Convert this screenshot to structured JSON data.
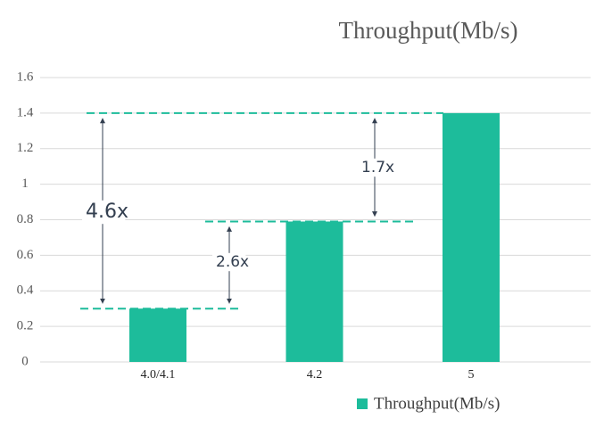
{
  "chart_data": {
    "type": "bar",
    "title": "Throughput(Mb/s)",
    "categories": [
      "4.0/4.1",
      "4.2",
      "5"
    ],
    "series": [
      {
        "name": "Throughput(Mb/s)",
        "color": "#1dbc9b",
        "values": [
          0.3,
          0.79,
          1.4
        ]
      }
    ],
    "ylim": [
      0,
      1.6
    ],
    "yticks": [
      0,
      0.2,
      0.4,
      0.6,
      0.8,
      1,
      1.2,
      1.4,
      1.6
    ],
    "grid": true,
    "annotations": [
      "4.6x",
      "2.6x",
      "1.7x"
    ],
    "legend": "bottom-right"
  }
}
